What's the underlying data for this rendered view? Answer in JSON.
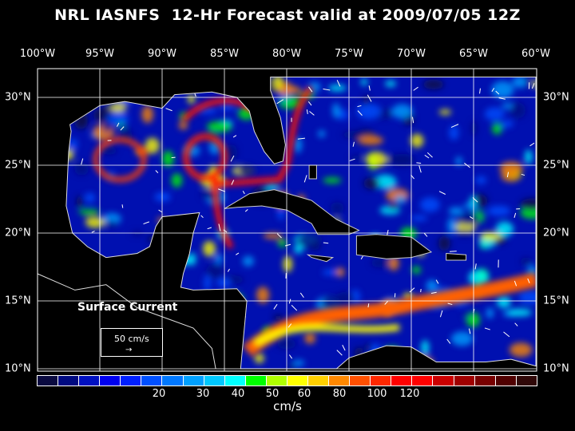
{
  "title": "NRL IASNFS  12-Hr Forecast valid at 2009/07/05 12Z",
  "lon_labels": [
    "100°W",
    "95°W",
    "90°W",
    "85°W",
    "80°W",
    "75°W",
    "70°W",
    "65°W",
    "60°W"
  ],
  "lat_labels": [
    "30°N",
    "25°N",
    "20°N",
    "15°N",
    "10°N"
  ],
  "legend": {
    "title": "Surface Current",
    "scale_label": "50 cm/s",
    "arrow": "→"
  },
  "colorbar": {
    "colors": [
      "#0a0a40",
      "#000a80",
      "#0010c0",
      "#0000f0",
      "#0020ff",
      "#0050ff",
      "#0078ff",
      "#00a0ff",
      "#00c8ff",
      "#00ffff",
      "#00ff00",
      "#b0ff00",
      "#ffff00",
      "#ffd000",
      "#ff8800",
      "#ff5000",
      "#ff2800",
      "#ff0000",
      "#ff0000",
      "#cc0000",
      "#a00000",
      "#780000",
      "#500000",
      "#300808"
    ],
    "labels": [
      "20",
      "30",
      "40",
      "50",
      "60",
      "80",
      "100",
      "120"
    ],
    "units": "cm/s"
  }
}
